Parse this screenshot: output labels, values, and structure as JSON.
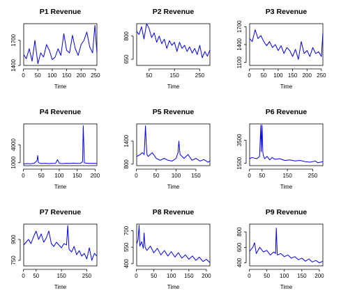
{
  "figure": {
    "background": "#ffffff"
  },
  "chart_data": [
    {
      "type": "line",
      "title": "P1 Revenue",
      "xlabel": "Time",
      "ylabel": "",
      "xlim": [
        1,
        255
      ],
      "ylim": [
        1400,
        1900
      ],
      "xticks": [
        0,
        50,
        100,
        150,
        200,
        250
      ],
      "yticks": [
        1400,
        1700
      ],
      "color": "#0000ee",
      "x": [
        1,
        10,
        20,
        30,
        40,
        50,
        60,
        70,
        80,
        90,
        100,
        110,
        120,
        130,
        140,
        150,
        160,
        170,
        180,
        190,
        200,
        210,
        220,
        230,
        240,
        248,
        255
      ],
      "y": [
        1530,
        1480,
        1600,
        1450,
        1700,
        1420,
        1550,
        1500,
        1650,
        1580,
        1470,
        1500,
        1600,
        1520,
        1780,
        1580,
        1550,
        1760,
        1600,
        1520,
        1650,
        1700,
        1800,
        1620,
        1550,
        1880,
        1550
      ]
    },
    {
      "type": "line",
      "title": "P2 Revenue",
      "xlabel": "Time",
      "ylabel": "",
      "xlim": [
        1,
        290
      ],
      "ylim": [
        610,
        880
      ],
      "xticks": [
        50,
        150,
        250
      ],
      "yticks": [
        650,
        800
      ],
      "color": "#0000ee",
      "x": [
        1,
        10,
        20,
        30,
        40,
        50,
        60,
        70,
        80,
        90,
        100,
        110,
        120,
        130,
        140,
        150,
        160,
        170,
        180,
        190,
        200,
        210,
        220,
        230,
        240,
        250,
        260,
        270,
        280,
        290
      ],
      "y": [
        830,
        810,
        860,
        780,
        880,
        850,
        790,
        820,
        760,
        800,
        750,
        780,
        720,
        770,
        740,
        760,
        700,
        760,
        720,
        740,
        700,
        730,
        690,
        720,
        680,
        740,
        660,
        700,
        670,
        710
      ]
    },
    {
      "type": "line",
      "title": "P3 Revenue",
      "xlabel": "Time",
      "ylabel": "",
      "xlim": [
        1,
        255
      ],
      "ylim": [
        1050,
        1750
      ],
      "xticks": [
        0,
        50,
        100,
        150,
        200,
        250
      ],
      "yticks": [
        1100,
        1400,
        1700
      ],
      "color": "#0000ee",
      "x": [
        1,
        10,
        20,
        30,
        40,
        50,
        60,
        70,
        80,
        90,
        100,
        110,
        120,
        130,
        140,
        150,
        160,
        170,
        180,
        190,
        200,
        210,
        220,
        230,
        240,
        250,
        255
      ],
      "y": [
        1500,
        1450,
        1650,
        1500,
        1550,
        1450,
        1380,
        1450,
        1350,
        1400,
        1300,
        1380,
        1250,
        1350,
        1300,
        1200,
        1320,
        1150,
        1450,
        1250,
        1300,
        1200,
        1350,
        1250,
        1280,
        1200,
        1600
      ]
    },
    {
      "type": "line",
      "title": "P4 Revenue",
      "xlabel": "Time",
      "ylabel": "",
      "xlim": [
        1,
        205
      ],
      "ylim": [
        500,
        7500
      ],
      "xticks": [
        0,
        50,
        100,
        150,
        200
      ],
      "yticks": [
        1000,
        4000
      ],
      "color": "#0000ee",
      "x": [
        1,
        10,
        20,
        30,
        38,
        40,
        42,
        50,
        60,
        70,
        80,
        90,
        95,
        97,
        100,
        110,
        120,
        130,
        140,
        150,
        160,
        165,
        167,
        170,
        180,
        190,
        200,
        205
      ],
      "y": [
        800,
        850,
        820,
        900,
        1300,
        2200,
        1000,
        850,
        900,
        850,
        880,
        900,
        1500,
        1300,
        900,
        850,
        900,
        880,
        920,
        880,
        900,
        1200,
        7200,
        950,
        900,
        880,
        900,
        850
      ]
    },
    {
      "type": "line",
      "title": "P5 Revenue",
      "xlabel": "Time",
      "ylabel": "",
      "xlim": [
        1,
        185
      ],
      "ylim": [
        760,
        1850
      ],
      "xticks": [
        0,
        50,
        100,
        150
      ],
      "yticks": [
        800,
        1400
      ],
      "color": "#0000ee",
      "x": [
        1,
        10,
        15,
        20,
        23,
        25,
        27,
        30,
        40,
        50,
        60,
        70,
        80,
        90,
        100,
        105,
        107,
        110,
        120,
        130,
        140,
        150,
        160,
        170,
        180,
        185
      ],
      "y": [
        1000,
        1050,
        1100,
        1050,
        1800,
        1350,
        1050,
        1000,
        1100,
        950,
        900,
        950,
        900,
        880,
        950,
        1100,
        1400,
        1050,
        950,
        1050,
        900,
        950,
        880,
        920,
        850,
        880
      ]
    },
    {
      "type": "line",
      "title": "P6 Revenue",
      "xlabel": "Time",
      "ylabel": "",
      "xlim": [
        1,
        290
      ],
      "ylim": [
        1300,
        4900
      ],
      "xticks": [
        0,
        50,
        150,
        250
      ],
      "yticks": [
        1500,
        3500
      ],
      "color": "#0000ee",
      "x": [
        1,
        10,
        20,
        30,
        40,
        45,
        47,
        50,
        53,
        55,
        60,
        70,
        80,
        90,
        100,
        120,
        140,
        160,
        180,
        200,
        220,
        240,
        260,
        270,
        280,
        290
      ],
      "y": [
        1900,
        2000,
        1950,
        1900,
        2100,
        4800,
        2500,
        4800,
        2500,
        2200,
        1900,
        2100,
        1800,
        2000,
        1850,
        1900,
        1750,
        1800,
        1700,
        1750,
        1650,
        1600,
        1700,
        1550,
        1600,
        1650
      ]
    },
    {
      "type": "line",
      "title": "P7 Revenue",
      "xlabel": "Time",
      "ylabel": "",
      "xlim": [
        1,
        290
      ],
      "ylim": [
        710,
        1010
      ],
      "xticks": [
        0,
        50,
        150,
        250
      ],
      "yticks": [
        750,
        900
      ],
      "color": "#0000ee",
      "x": [
        1,
        10,
        20,
        30,
        40,
        50,
        60,
        70,
        80,
        90,
        100,
        110,
        120,
        130,
        140,
        150,
        160,
        170,
        175,
        180,
        190,
        200,
        210,
        220,
        230,
        240,
        250,
        260,
        270,
        280,
        290
      ],
      "y": [
        860,
        880,
        900,
        870,
        920,
        960,
        900,
        940,
        880,
        910,
        960,
        870,
        850,
        880,
        860,
        840,
        870,
        860,
        1000,
        830,
        810,
        850,
        790,
        820,
        780,
        800,
        760,
        840,
        750,
        800,
        780
      ]
    },
    {
      "type": "line",
      "title": "P8 Revenue",
      "xlabel": "Time",
      "ylabel": "",
      "xlim": [
        1,
        210
      ],
      "ylim": [
        380,
        760
      ],
      "xticks": [
        0,
        50,
        100,
        150,
        200
      ],
      "yticks": [
        400,
        550,
        700
      ],
      "color": "#0000ee",
      "x": [
        1,
        5,
        8,
        10,
        15,
        20,
        22,
        25,
        30,
        40,
        50,
        60,
        70,
        80,
        90,
        100,
        110,
        120,
        130,
        140,
        150,
        160,
        170,
        180,
        190,
        200,
        210
      ],
      "y": [
        580,
        620,
        750,
        560,
        600,
        540,
        680,
        550,
        520,
        560,
        500,
        540,
        480,
        520,
        470,
        510,
        460,
        500,
        450,
        480,
        440,
        470,
        430,
        460,
        420,
        440,
        410
      ]
    },
    {
      "type": "line",
      "title": "P9 Revenue",
      "xlabel": "Time",
      "ylabel": "",
      "xlim": [
        1,
        210
      ],
      "ylim": [
        360,
        900
      ],
      "xticks": [
        0,
        50,
        100,
        150,
        200
      ],
      "yticks": [
        400,
        600,
        800
      ],
      "color": "#0000ee",
      "x": [
        1,
        10,
        15,
        20,
        30,
        40,
        50,
        60,
        70,
        75,
        77,
        80,
        90,
        100,
        110,
        120,
        130,
        140,
        150,
        160,
        170,
        180,
        190,
        200,
        210
      ],
      "y": [
        550,
        600,
        660,
        520,
        600,
        540,
        560,
        500,
        540,
        520,
        850,
        500,
        520,
        480,
        500,
        460,
        480,
        440,
        460,
        420,
        450,
        410,
        430,
        400,
        420
      ]
    }
  ]
}
